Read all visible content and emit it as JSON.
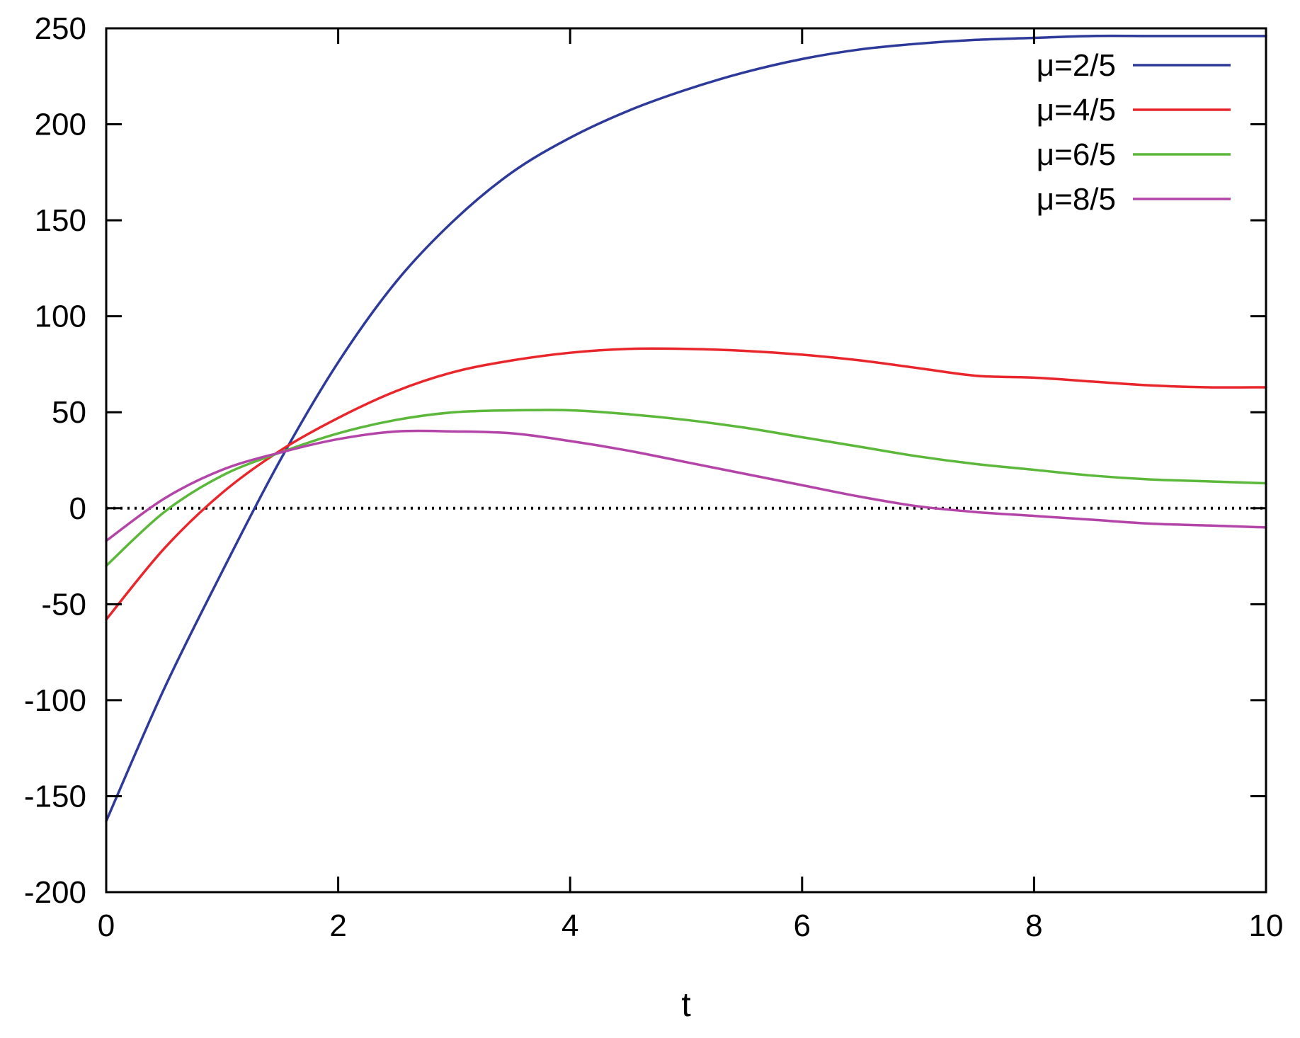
{
  "chart_data": {
    "type": "line",
    "title": "",
    "xlabel": "t",
    "ylabel": "",
    "xlim": [
      0,
      10
    ],
    "ylim": [
      -200,
      250
    ],
    "xticks": [
      0,
      2,
      4,
      6,
      8,
      10
    ],
    "yticks": [
      -200,
      -150,
      -100,
      -50,
      0,
      50,
      100,
      150,
      200,
      250
    ],
    "grid": false,
    "legend": "top-right",
    "zero_line": {
      "y": 0,
      "style": "dotted",
      "color": "#000000"
    },
    "series": [
      {
        "name": "μ=2/5",
        "color": "#2e3a9a",
        "x": [
          0,
          0.5,
          1,
          1.5,
          2,
          2.5,
          3,
          3.5,
          4,
          4.5,
          5,
          5.5,
          6,
          6.5,
          7,
          7.5,
          8,
          8.5,
          9,
          9.5,
          10
        ],
        "y": [
          -163,
          -94,
          -33,
          25,
          76,
          118,
          150,
          175,
          193,
          207,
          218,
          227,
          234,
          239,
          242,
          244,
          245,
          246,
          246,
          246,
          246
        ]
      },
      {
        "name": "μ=4/5",
        "color": "#e8262b",
        "x": [
          0,
          0.5,
          1,
          1.5,
          2,
          2.5,
          3,
          3.5,
          4,
          4.5,
          5,
          5.5,
          6,
          6.5,
          7,
          7.5,
          8,
          8.5,
          9,
          9.5,
          10
        ],
        "y": [
          -58,
          -21,
          8,
          30,
          47,
          61,
          71,
          77,
          81,
          83,
          83,
          82,
          80,
          77,
          73,
          69,
          68,
          66,
          64,
          63,
          63
        ]
      },
      {
        "name": "μ=6/5",
        "color": "#5cb83a",
        "x": [
          0,
          0.5,
          1,
          1.5,
          2,
          2.5,
          3,
          3.5,
          4,
          4.5,
          5,
          5.5,
          6,
          6.5,
          7,
          7.5,
          8,
          8.5,
          9,
          9.5,
          10
        ],
        "y": [
          -30,
          -2,
          17,
          29,
          39,
          46,
          50,
          51,
          51,
          49,
          46,
          42,
          37,
          32,
          27,
          23,
          20,
          17,
          15,
          14,
          13
        ]
      },
      {
        "name": "μ=8/5",
        "color": "#b445a8",
        "x": [
          0,
          0.5,
          1,
          1.5,
          2,
          2.5,
          3,
          3.5,
          4,
          4.5,
          5,
          5.5,
          6,
          6.5,
          7,
          7.5,
          8,
          8.5,
          9,
          9.5,
          10
        ],
        "y": [
          -17,
          5,
          20,
          29,
          36,
          40,
          40,
          39,
          35,
          30,
          24,
          18,
          12,
          6,
          1,
          -2,
          -4,
          -6,
          -8,
          -9,
          -10
        ]
      }
    ]
  }
}
